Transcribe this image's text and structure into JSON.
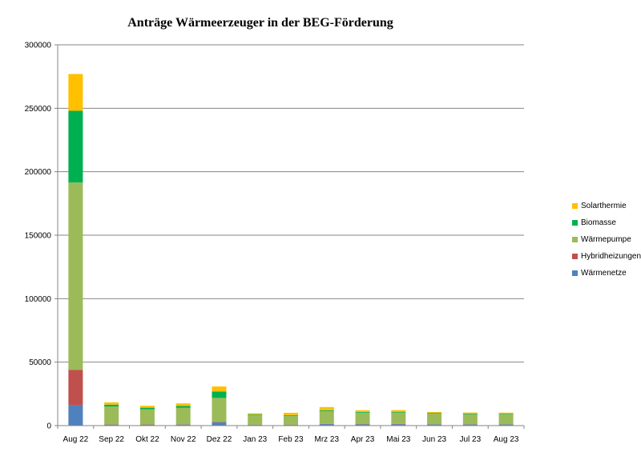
{
  "chart_data": {
    "type": "bar",
    "stacked": true,
    "title": "Anträge Wärmeerzeuger in der  BEG-Förderung",
    "xlabel": "",
    "ylabel": "",
    "ylim": [
      0,
      300000
    ],
    "yticks": [
      0,
      50000,
      100000,
      150000,
      200000,
      250000,
      300000
    ],
    "yticklabels": [
      "0",
      "50000",
      "100000",
      "150000",
      "200000",
      "250000",
      "300000"
    ],
    "grid": true,
    "legend_position": "right",
    "categories": [
      "Aug 22",
      "Sep 22",
      "Okt 22",
      "Nov 22",
      "Dez 22",
      "Jan 23",
      "Feb 23",
      "Mrz 23",
      "Apr 23",
      "Mai 23",
      "Jun 23",
      "Jul 23",
      "Aug 23"
    ],
    "series": [
      {
        "name": "Wärmenetze",
        "color": "#4f81bd",
        "values": [
          16000,
          800,
          700,
          800,
          2500,
          600,
          600,
          1200,
          1000,
          1100,
          900,
          900,
          900
        ]
      },
      {
        "name": "Hybridheizungen",
        "color": "#c0504d",
        "values": [
          28000,
          200,
          200,
          200,
          300,
          100,
          100,
          200,
          200,
          200,
          100,
          100,
          100
        ]
      },
      {
        "name": "Wärmepumpe",
        "color": "#9bbb59",
        "values": [
          147500,
          14000,
          12000,
          13000,
          19000,
          7500,
          7000,
          10000,
          9000,
          9000,
          8500,
          8000,
          7800
        ]
      },
      {
        "name": "Biomasse",
        "color": "#00b050",
        "values": [
          56500,
          1500,
          1200,
          1500,
          5000,
          500,
          600,
          700,
          600,
          600,
          500,
          500,
          500
        ]
      },
      {
        "name": "Solarthermie",
        "color": "#ffc000",
        "values": [
          29000,
          1800,
          1500,
          2000,
          4000,
          1000,
          1800,
          2500,
          1300,
          1300,
          700,
          800,
          900
        ]
      }
    ]
  }
}
